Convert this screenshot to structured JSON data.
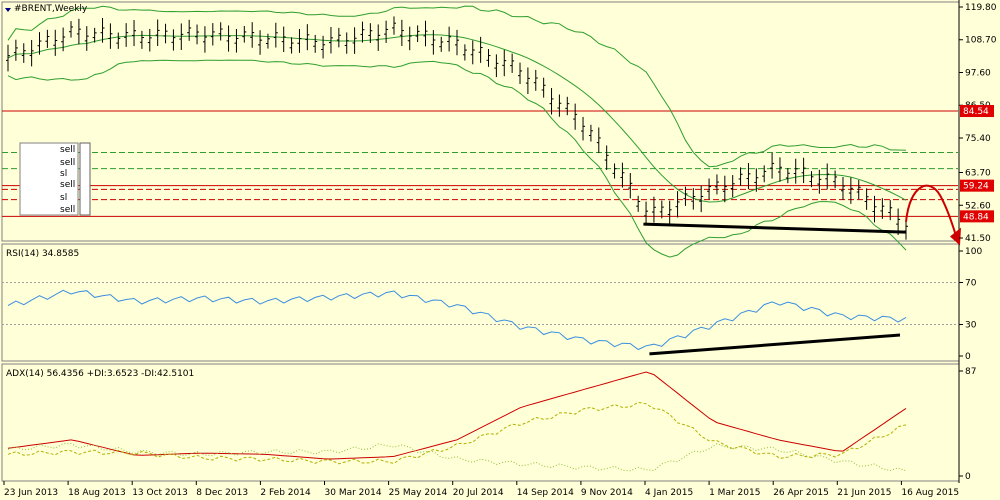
{
  "window": {
    "title": "#BRENT,Weekly",
    "menu_icon": "triangle-down-icon"
  },
  "price_panel": {
    "y_axis_ticks": [
      "119.80",
      "108.70",
      "97.60",
      "86.50",
      "75.40",
      "63.70",
      "52.60",
      "41.50"
    ],
    "level_tags": [
      {
        "value": "84.54",
        "color": "#e00000"
      },
      {
        "value": "59.24",
        "color": "#e00000"
      },
      {
        "value": "48.84",
        "color": "#e00000"
      }
    ],
    "hidden_trade_labels": [
      "sell",
      "sell",
      "sell",
      "sl",
      "sl",
      "sell"
    ],
    "colors": {
      "bars": "#000000",
      "bands": "#2f9e2f",
      "resistance": "#cc0000",
      "support_dash": "#2f9e2f",
      "trendline": "#000000",
      "forecast_arrow": "#cc0000"
    }
  },
  "rsi_panel": {
    "label": "RSI(14) 34.8585",
    "y_axis_ticks": [
      "100",
      "70",
      "30",
      "0"
    ],
    "line_color": "#3a8fe0"
  },
  "adx_panel": {
    "label": "ADX(14) 56.4356 +DI:3.6523 -DI:42.5101",
    "y_axis_ticks": [
      "87",
      "0"
    ],
    "adx_color": "#cc0000",
    "plus_di_color": "#8fbf3a",
    "minus_di_color": "#b0b000"
  },
  "x_axis": {
    "labels": [
      "23 Jun 2013",
      "18 Aug 2013",
      "13 Oct 2013",
      "8 Dec 2013",
      "2 Feb 2014",
      "30 Mar 2014",
      "25 May 2014",
      "20 Jul 2014",
      "14 Sep 2014",
      "9 Nov 2014",
      "4 Jan 2015",
      "1 Mar 2015",
      "26 Apr 2015",
      "21 Jun 2015",
      "16 Aug 2015"
    ]
  },
  "chart_data": [
    {
      "type": "candlestick",
      "title": "#BRENT,Weekly",
      "ylim": [
        41.5,
        119.8
      ],
      "x": [
        "23 Jun 2013",
        "18 Aug 2013",
        "13 Oct 2013",
        "8 Dec 2013",
        "2 Feb 2014",
        "30 Mar 2014",
        "25 May 2014",
        "20 Jul 2014",
        "14 Sep 2014",
        "9 Nov 2014",
        "4 Jan 2015",
        "1 Mar 2015",
        "26 Apr 2015",
        "21 Jun 2015",
        "16 Aug 2015"
      ],
      "close": [
        102.5,
        111.0,
        109.5,
        110.5,
        109.0,
        107.5,
        112.0,
        107.0,
        98.0,
        79.5,
        49.0,
        58.0,
        65.0,
        60.0,
        46.0
      ],
      "horizontal_levels": [
        84.54,
        59.24,
        48.84
      ]
    },
    {
      "type": "line",
      "title": "RSI(14) 34.8585",
      "ylim": [
        0,
        100
      ],
      "x": [
        "23 Jun 2013",
        "18 Aug 2013",
        "13 Oct 2013",
        "8 Dec 2013",
        "2 Feb 2014",
        "30 Mar 2014",
        "25 May 2014",
        "20 Jul 2014",
        "14 Sep 2014",
        "9 Nov 2014",
        "4 Jan 2015",
        "1 Mar 2015",
        "26 Apr 2015",
        "21 Jun 2015",
        "16 Aug 2015"
      ],
      "series": [
        {
          "name": "RSI(14)",
          "values": [
            48,
            62,
            52,
            55,
            52,
            56,
            60,
            48,
            28,
            15,
            8,
            30,
            52,
            38,
            35
          ]
        }
      ],
      "reference_lines": [
        70,
        30
      ]
    },
    {
      "type": "line",
      "title": "ADX(14) 56.4356 +DI:3.6523 -DI:42.5101",
      "ylim": [
        0,
        87
      ],
      "x": [
        "23 Jun 2013",
        "18 Aug 2013",
        "13 Oct 2013",
        "8 Dec 2013",
        "2 Feb 2014",
        "30 Mar 2014",
        "25 May 2014",
        "20 Jul 2014",
        "14 Sep 2014",
        "9 Nov 2014",
        "4 Jan 2015",
        "1 Mar 2015",
        "26 Apr 2015",
        "21 Jun 2015",
        "16 Aug 2015"
      ],
      "series": [
        {
          "name": "ADX(14)",
          "values": [
            23,
            30,
            17,
            19,
            18,
            14,
            16,
            30,
            57,
            72,
            87,
            45,
            30,
            20,
            56
          ]
        },
        {
          "name": "+DI",
          "values": [
            22,
            26,
            20,
            18,
            20,
            20,
            26,
            14,
            10,
            7,
            5,
            25,
            22,
            12,
            4
          ]
        },
        {
          "name": "-DI",
          "values": [
            18,
            20,
            19,
            15,
            14,
            12,
            12,
            25,
            44,
            55,
            60,
            28,
            16,
            18,
            42
          ]
        }
      ]
    }
  ]
}
